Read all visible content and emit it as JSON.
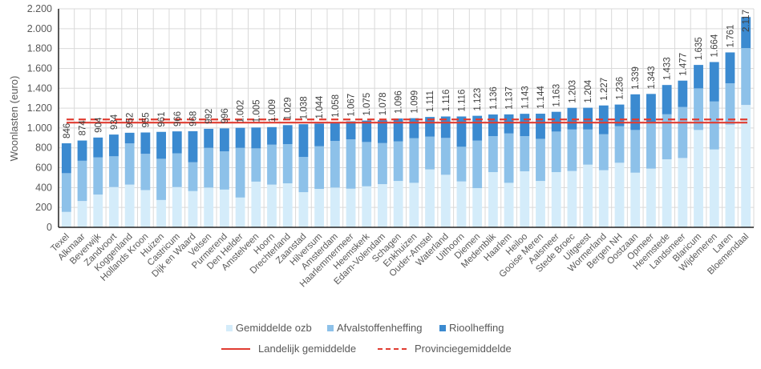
{
  "chart_data": {
    "type": "bar",
    "stacked": true,
    "ylabel": "Woonlasten (euro)",
    "xlabel": "",
    "ylim": [
      0,
      2200
    ],
    "yticks": [
      0,
      200,
      400,
      600,
      800,
      1000,
      1200,
      1400,
      1600,
      1800,
      2000,
      2200
    ],
    "grid": true,
    "legend_position": "bottom",
    "categories": [
      "Texel",
      "Alkmaar",
      "Beverwijk",
      "Zandvoort",
      "Koggenland",
      "Hollands Kroon",
      "Huizen",
      "Castricum",
      "Dijk en Waard",
      "Velsen",
      "Purmerend",
      "Den Helder",
      "Amstelveen",
      "Hoorn",
      "Drechterland",
      "Zaanstad",
      "Hilversum",
      "Amsterdam",
      "Haarlemmermeer",
      "Heemskerk",
      "Edam-Volendam",
      "Schagen",
      "Enkhuizen",
      "Ouder-Amstel",
      "Waterland",
      "Uithoorn",
      "Diemen",
      "Medemblik",
      "Haarlem",
      "Heiloo",
      "Gooise Meren",
      "Aalsmeer",
      "Stede Broec",
      "Uitgeest",
      "Wormerland",
      "Bergen NH",
      "Oostzaan",
      "Opmeer",
      "Heemstede",
      "Landsmeer",
      "Blaricum",
      "Wijdemeren",
      "Laren",
      "Bloemendaal"
    ],
    "series": [
      {
        "name": "Gemiddelde ozb",
        "color": "#d4ecfa",
        "values": [
          155,
          265,
          330,
          405,
          430,
          375,
          275,
          405,
          365,
          400,
          380,
          300,
          460,
          430,
          443,
          354,
          387,
          400,
          389,
          413,
          435,
          467,
          448,
          583,
          529,
          462,
          395,
          556,
          448,
          564,
          467,
          556,
          567,
          631,
          575,
          650,
          550,
          591,
          685,
          698,
          980,
          784,
          1034,
          1232
        ]
      },
      {
        "name": "Afvalstoffenheffing",
        "color": "#8dc1e9",
        "values": [
          390,
          405,
          375,
          310,
          415,
          365,
          415,
          340,
          290,
          400,
          385,
          500,
          335,
          402,
          395,
          355,
          429,
          470,
          497,
          446,
          413,
          398,
          449,
          330,
          371,
          349,
          478,
          362,
          497,
          354,
          424,
          408,
          418,
          354,
          362,
          368,
          430,
          461,
          453,
          513,
          419,
          483,
          416,
          572
        ]
      },
      {
        "name": "Rioolheffing",
        "color": "#3b8ad0",
        "values": [
          301,
          204,
          199,
          219,
          107,
          215,
          271,
          221,
          313,
          192,
          231,
          202,
          210,
          177,
          191,
          329,
          228,
          188,
          181,
          216,
          230,
          231,
          202,
          198,
          216,
          305,
          250,
          218,
          192,
          225,
          253,
          199,
          218,
          219,
          290,
          218,
          359,
          291,
          295,
          266,
          236,
          397,
          311,
          313
        ]
      }
    ],
    "totals": [
      846,
      874,
      904,
      934,
      952,
      955,
      961,
      966,
      968,
      992,
      996,
      1002,
      1005,
      1009,
      1029,
      1038,
      1044,
      1058,
      1067,
      1075,
      1078,
      1096,
      1099,
      1111,
      1116,
      1116,
      1123,
      1136,
      1137,
      1143,
      1144,
      1163,
      1203,
      1204,
      1227,
      1236,
      1339,
      1343,
      1433,
      1477,
      1635,
      1664,
      1761,
      2117
    ],
    "reference_lines": [
      {
        "name": "Landelijk gemiddelde",
        "value": 1054,
        "style": "solid",
        "color": "#e03c31"
      },
      {
        "name": "Provinciegemiddelde",
        "value": 1086,
        "style": "dashed",
        "color": "#e03c31"
      }
    ]
  }
}
